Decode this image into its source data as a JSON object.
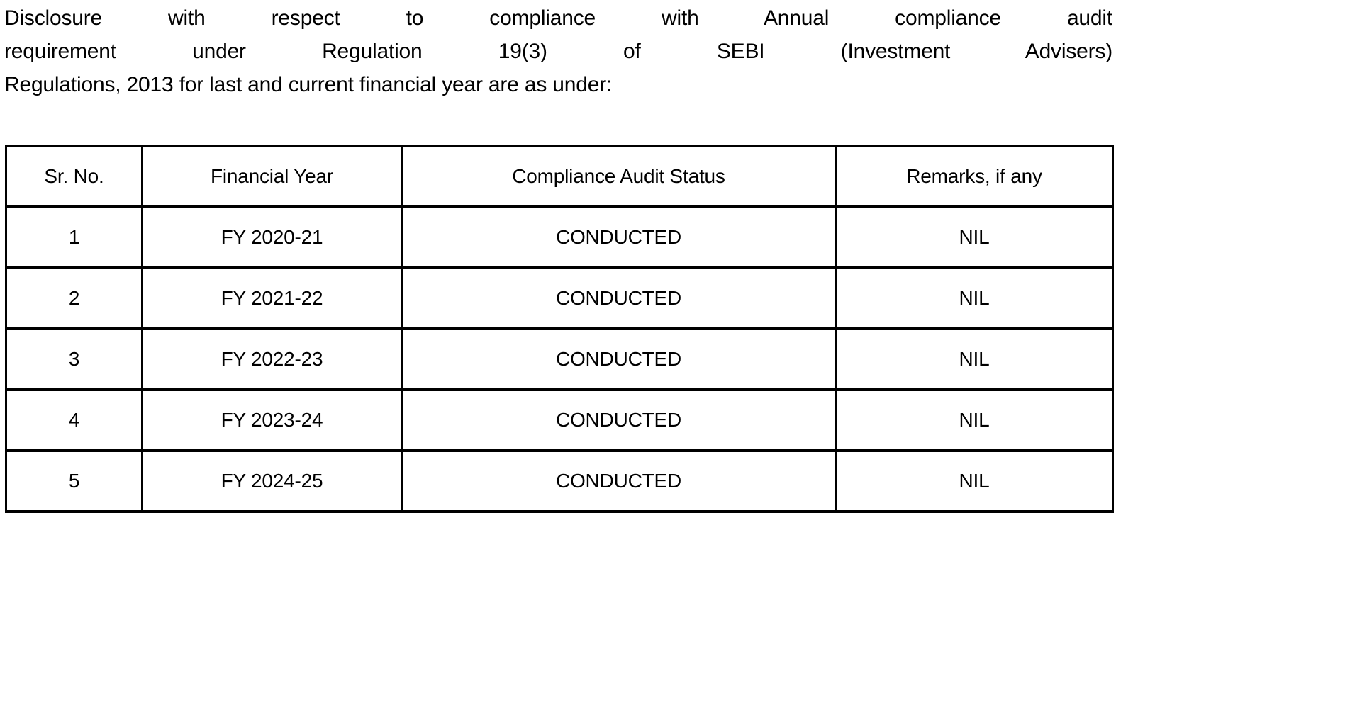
{
  "page": {
    "background_color": "#ffffff",
    "text_color": "#000000",
    "border_color": "#000000"
  },
  "heading": {
    "full_text": "Disclosure with respect to compliance with Annual compliance audit requirement under Regulation 19(3) of SEBI (Investment Advisers) Regulations, 2013 for last and current financial year are as under:",
    "lines": [
      "Disclosure with respect to compliance with Annual compliance audit",
      "requirement under Regulation 19(3) of SEBI (Investment Advisers)",
      "Regulations, 2013 for last and current financial year are as under:"
    ]
  },
  "table": {
    "columns": [
      "Sr. No.",
      "Financial Year",
      "Compliance Audit Status",
      "Remarks, if any"
    ],
    "rows": [
      [
        "1",
        "FY 2020-21",
        "CONDUCTED",
        "NIL"
      ],
      [
        "2",
        "FY 2021-22",
        "CONDUCTED",
        "NIL"
      ],
      [
        "3",
        "FY 2022-23",
        "CONDUCTED",
        "NIL"
      ],
      [
        "4",
        "FY 2023-24",
        "CONDUCTED",
        "NIL"
      ],
      [
        "5",
        "FY 2024-25",
        "CONDUCTED",
        "NIL"
      ]
    ]
  }
}
